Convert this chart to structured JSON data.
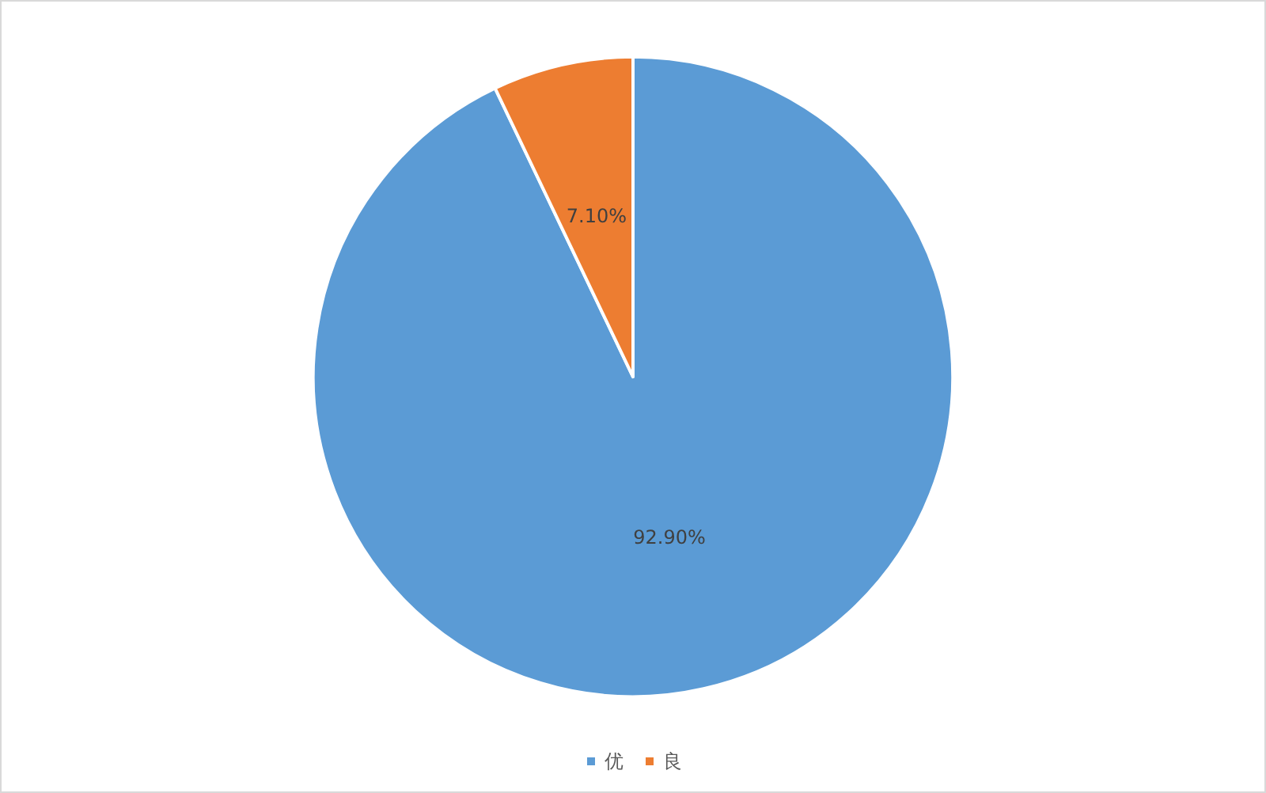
{
  "chart_data": {
    "type": "pie",
    "categories": [
      "优",
      "良"
    ],
    "values": [
      92.9,
      7.1
    ],
    "colors": [
      "#5b9bd5",
      "#ed7d31"
    ],
    "value_labels": [
      "92.90%",
      "7.10%"
    ],
    "legend": "bottom"
  }
}
